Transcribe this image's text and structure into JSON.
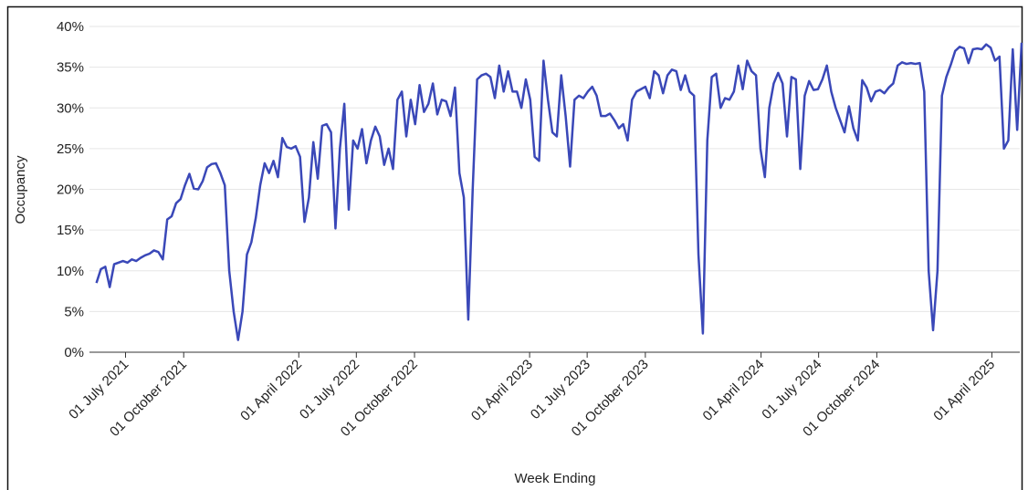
{
  "chart_data": {
    "type": "line",
    "x_label": "Week Ending",
    "y_label": "Occupancy",
    "x": [
      "2021-05-16",
      "2021-05-23",
      "2021-05-30",
      "2021-06-06",
      "2021-06-13",
      "2021-06-20",
      "2021-06-27",
      "2021-07-04",
      "2021-07-11",
      "2021-07-18",
      "2021-07-25",
      "2021-08-01",
      "2021-08-08",
      "2021-08-15",
      "2021-08-22",
      "2021-08-29",
      "2021-09-05",
      "2021-09-12",
      "2021-09-19",
      "2021-09-26",
      "2021-10-03",
      "2021-10-10",
      "2021-10-17",
      "2021-10-24",
      "2021-10-31",
      "2021-11-07",
      "2021-11-14",
      "2021-11-21",
      "2021-11-28",
      "2021-12-05",
      "2021-12-12",
      "2021-12-19",
      "2021-12-26",
      "2022-01-02",
      "2022-01-09",
      "2022-01-16",
      "2022-01-23",
      "2022-01-30",
      "2022-02-06",
      "2022-02-13",
      "2022-02-20",
      "2022-02-27",
      "2022-03-06",
      "2022-03-13",
      "2022-03-20",
      "2022-03-27",
      "2022-04-03",
      "2022-04-10",
      "2022-04-17",
      "2022-04-24",
      "2022-05-01",
      "2022-05-08",
      "2022-05-15",
      "2022-05-22",
      "2022-05-29",
      "2022-06-05",
      "2022-06-12",
      "2022-06-19",
      "2022-06-26",
      "2022-07-03",
      "2022-07-10",
      "2022-07-17",
      "2022-07-24",
      "2022-07-31",
      "2022-08-07",
      "2022-08-14",
      "2022-08-21",
      "2022-08-28",
      "2022-09-04",
      "2022-09-11",
      "2022-09-18",
      "2022-09-25",
      "2022-10-02",
      "2022-10-09",
      "2022-10-16",
      "2022-10-23",
      "2022-10-30",
      "2022-11-06",
      "2022-11-13",
      "2022-11-20",
      "2022-11-27",
      "2022-12-04",
      "2022-12-11",
      "2022-12-18",
      "2022-12-25",
      "2023-01-01",
      "2023-01-08",
      "2023-01-15",
      "2023-01-22",
      "2023-01-29",
      "2023-02-05",
      "2023-02-12",
      "2023-02-19",
      "2023-02-26",
      "2023-03-05",
      "2023-03-12",
      "2023-03-19",
      "2023-03-26",
      "2023-04-02",
      "2023-04-09",
      "2023-04-16",
      "2023-04-23",
      "2023-04-30",
      "2023-05-07",
      "2023-05-14",
      "2023-05-21",
      "2023-05-28",
      "2023-06-04",
      "2023-06-11",
      "2023-06-18",
      "2023-06-25",
      "2023-07-02",
      "2023-07-09",
      "2023-07-16",
      "2023-07-23",
      "2023-07-30",
      "2023-08-06",
      "2023-08-13",
      "2023-08-20",
      "2023-08-27",
      "2023-09-03",
      "2023-09-10",
      "2023-09-17",
      "2023-09-24",
      "2023-10-01",
      "2023-10-08",
      "2023-10-15",
      "2023-10-22",
      "2023-10-29",
      "2023-11-05",
      "2023-11-12",
      "2023-11-19",
      "2023-11-26",
      "2023-12-03",
      "2023-12-10",
      "2023-12-17",
      "2023-12-24",
      "2023-12-31",
      "2024-01-07",
      "2024-01-14",
      "2024-01-21",
      "2024-01-28",
      "2024-02-04",
      "2024-02-11",
      "2024-02-18",
      "2024-02-25",
      "2024-03-03",
      "2024-03-10",
      "2024-03-17",
      "2024-03-24",
      "2024-03-31",
      "2024-04-07",
      "2024-04-14",
      "2024-04-21",
      "2024-04-28",
      "2024-05-05",
      "2024-05-12",
      "2024-05-19",
      "2024-05-26",
      "2024-06-02",
      "2024-06-09",
      "2024-06-16",
      "2024-06-23",
      "2024-06-30",
      "2024-07-07",
      "2024-07-14",
      "2024-07-21",
      "2024-07-28",
      "2024-08-04",
      "2024-08-11",
      "2024-08-18",
      "2024-08-25",
      "2024-09-01",
      "2024-09-08",
      "2024-09-15",
      "2024-09-22",
      "2024-09-29",
      "2024-10-06",
      "2024-10-13",
      "2024-10-20",
      "2024-10-27",
      "2024-11-03",
      "2024-11-10",
      "2024-11-17",
      "2024-11-24",
      "2024-12-01",
      "2024-12-08",
      "2024-12-15",
      "2024-12-22",
      "2024-12-29",
      "2025-01-05",
      "2025-01-12",
      "2025-01-19",
      "2025-01-26",
      "2025-02-02",
      "2025-02-09",
      "2025-02-16",
      "2025-02-23",
      "2025-03-02",
      "2025-03-09",
      "2025-03-16",
      "2025-03-23",
      "2025-03-30",
      "2025-04-06",
      "2025-04-13",
      "2025-04-20",
      "2025-04-27",
      "2025-05-04",
      "2025-05-11",
      "2025-05-18"
    ],
    "series": [
      {
        "name": "Occupancy",
        "color": "#3a48b8",
        "values": [
          8.5,
          10.2,
          10.5,
          8,
          10.8,
          11,
          11.2,
          11,
          11.4,
          11.2,
          11.6,
          11.9,
          12.1,
          12.5,
          12.3,
          11.4,
          16.3,
          16.7,
          18.3,
          18.8,
          20.5,
          21.9,
          20.1,
          20,
          21,
          22.7,
          23.1,
          23.2,
          22,
          20.5,
          10,
          5,
          1.5,
          5,
          12,
          13.5,
          16.5,
          20.5,
          23.2,
          22,
          23.5,
          21.5,
          26.3,
          25.2,
          25,
          25.3,
          24,
          16,
          19,
          25.8,
          21.3,
          27.8,
          28,
          27,
          15.2,
          25,
          30.5,
          17.5,
          26,
          25,
          27.4,
          23.2,
          26,
          27.7,
          26.5,
          23,
          25,
          22.5,
          31,
          32,
          26.5,
          31,
          28,
          32.8,
          29.5,
          30.5,
          33,
          29.2,
          31,
          30.8,
          29,
          32.5,
          22,
          19,
          4,
          20,
          33.5,
          34,
          34.2,
          33.8,
          31.2,
          35.2,
          32,
          34.5,
          32,
          32,
          30,
          33.5,
          31,
          24,
          23.5,
          35.8,
          31,
          27,
          26.5,
          34,
          29,
          22.8,
          31,
          31.5,
          31.2,
          32,
          32.6,
          31.5,
          29,
          29,
          29.3,
          28.5,
          27.5,
          28,
          26,
          31,
          32,
          32.3,
          32.6,
          31.2,
          34.5,
          34,
          31.8,
          34,
          34.7,
          34.5,
          32.2,
          34,
          32,
          31.5,
          12,
          2.3,
          26,
          33.8,
          34.2,
          30,
          31.2,
          31,
          32,
          35.2,
          32.3,
          35.8,
          34.5,
          34,
          25,
          21.5,
          30,
          33,
          34.3,
          33,
          26.5,
          33.8,
          33.5,
          22.5,
          31.5,
          33.3,
          32.2,
          32.3,
          33.5,
          35.2,
          32,
          30,
          28.5,
          27,
          30.2,
          27.5,
          26,
          33.4,
          32.5,
          30.8,
          32,
          32.2,
          31.8,
          32.5,
          33,
          35.2,
          35.6,
          35.4,
          35.5,
          35.4,
          35.5,
          32,
          10,
          2.7,
          10,
          31.5,
          33.8,
          35.3,
          37,
          37.5,
          37.3,
          35.5,
          37.2,
          37.3,
          37.2,
          37.8,
          37.4,
          35.8,
          36.3,
          25,
          26,
          37.2,
          27.3,
          38
        ]
      }
    ],
    "xlim": [
      "2021-05-05",
      "2025-05-18"
    ],
    "xticks": [
      {
        "value": "2021-07-01",
        "label": "01 July 2021"
      },
      {
        "value": "2021-10-01",
        "label": "01 October 2021"
      },
      {
        "value": "2022-04-01",
        "label": "01 April 2022"
      },
      {
        "value": "2022-07-01",
        "label": "01 July 2022"
      },
      {
        "value": "2022-10-01",
        "label": "01 October 2022"
      },
      {
        "value": "2023-04-01",
        "label": "01 April 2023"
      },
      {
        "value": "2023-07-01",
        "label": "01 July 2023"
      },
      {
        "value": "2023-10-01",
        "label": "01 October 2023"
      },
      {
        "value": "2024-04-01",
        "label": "01 April 2024"
      },
      {
        "value": "2024-07-01",
        "label": "01 July 2024"
      },
      {
        "value": "2024-10-01",
        "label": "01 October 2024"
      },
      {
        "value": "2025-04-01",
        "label": "01 April 2025"
      }
    ],
    "ylim": [
      0,
      40
    ],
    "yticks": [
      {
        "value": 0,
        "label": "0%"
      },
      {
        "value": 5,
        "label": "5%"
      },
      {
        "value": 10,
        "label": "10%"
      },
      {
        "value": 15,
        "label": "15%"
      },
      {
        "value": 20,
        "label": "20%"
      },
      {
        "value": 25,
        "label": "25%"
      },
      {
        "value": 30,
        "label": "30%"
      },
      {
        "value": 35,
        "label": "35%"
      },
      {
        "value": 40,
        "label": "40%"
      }
    ],
    "grid": true
  }
}
